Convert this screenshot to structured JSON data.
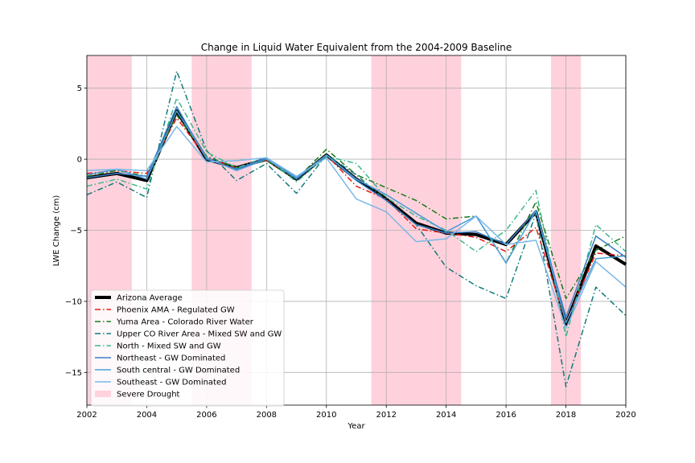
{
  "chart_data": {
    "type": "line",
    "title": "Change in Liquid Water Equivalent from the 2004-2009 Baseline",
    "xlabel": "Year",
    "ylabel": "LWE Change (cm)",
    "xlim": [
      2002,
      2020
    ],
    "ylim": [
      -17.3,
      7.3
    ],
    "xticks": [
      2002,
      2004,
      2006,
      2008,
      2010,
      2012,
      2014,
      2016,
      2018,
      2020
    ],
    "yticks": [
      5,
      0,
      -5,
      -10,
      -15
    ],
    "yticklabels": [
      "5",
      "0",
      "−5",
      "−10",
      "−15"
    ],
    "grid": true,
    "legend_position": "lower-left",
    "x": [
      2002,
      2003,
      2004,
      2005,
      2006,
      2007,
      2008,
      2009,
      2010,
      2011,
      2012,
      2013,
      2014,
      2015,
      2016,
      2017,
      2018,
      2019,
      2020
    ],
    "drought_periods": [
      [
        2002,
        2003.5
      ],
      [
        2005.5,
        2007.5
      ],
      [
        2011.5,
        2014.5
      ],
      [
        2017.5,
        2018.5
      ]
    ],
    "drought": {
      "name": "Severe Drought",
      "color": "#ffd1dc"
    },
    "series": [
      {
        "name": "Arizona Average",
        "color": "#000000",
        "style": "solid",
        "width": 4,
        "values": [
          -1.3,
          -1.0,
          -1.5,
          3.4,
          0.0,
          -0.6,
          0.0,
          -1.4,
          0.3,
          -1.4,
          -2.8,
          -4.5,
          -5.2,
          -5.3,
          -6.0,
          -3.7,
          -11.6,
          -6.1,
          -7.4
        ]
      },
      {
        "name": "Phoenix AMA - Regulated GW",
        "color": "#e8190f",
        "style": "dashdot",
        "width": 1.5,
        "values": [
          -1.0,
          -0.8,
          -1.0,
          2.9,
          0.1,
          -0.6,
          -0.1,
          -1.3,
          0.3,
          -1.9,
          -2.8,
          -4.9,
          -5.2,
          -5.5,
          -6.5,
          -4.8,
          -11.5,
          -6.6,
          -6.8
        ]
      },
      {
        "name": "Yuma Area - Colorado River Water",
        "color": "#1a7a1a",
        "style": "dashdot",
        "width": 1.5,
        "values": [
          -1.2,
          -0.8,
          -1.2,
          3.1,
          0.2,
          -0.6,
          -0.1,
          -1.4,
          0.7,
          -1.1,
          -2.0,
          -2.9,
          -4.2,
          -4.0,
          -7.3,
          -3.0,
          -9.8,
          -6.4,
          -5.4
        ]
      },
      {
        "name": "Upper CO River Area - Mixed SW and GW",
        "color": "#117a7a",
        "style": "dashdot",
        "width": 1.5,
        "values": [
          -2.5,
          -1.6,
          -2.7,
          6.2,
          0.6,
          -1.5,
          -0.3,
          -2.4,
          0.3,
          -1.1,
          -2.9,
          -4.6,
          -7.6,
          -8.9,
          -9.8,
          -3.8,
          -16.0,
          -9.0,
          -11.0
        ]
      },
      {
        "name": "North - Mixed SW and GW",
        "color": "#3cb88c",
        "style": "dashdot",
        "width": 1.5,
        "values": [
          -1.9,
          -1.4,
          -2.1,
          4.3,
          0.5,
          -0.6,
          0.1,
          -1.6,
          0.2,
          -0.3,
          -2.7,
          -4.0,
          -5.0,
          -6.5,
          -5.0,
          -2.2,
          -12.5,
          -4.6,
          -6.5
        ]
      },
      {
        "name": "Northeast - GW Dominated",
        "color": "#3a7ec6",
        "style": "solid",
        "width": 1.5,
        "values": [
          -1.3,
          -1.0,
          -1.2,
          3.7,
          0.0,
          -0.7,
          0.1,
          -1.4,
          0.3,
          -1.5,
          -2.9,
          -4.6,
          -5.2,
          -5.1,
          -6.0,
          -3.6,
          -11.1,
          -5.4,
          -6.9
        ]
      },
      {
        "name": "South central - GW Dominated",
        "color": "#4a9ed8",
        "style": "solid",
        "width": 1.5,
        "values": [
          -1.1,
          -0.7,
          -1.4,
          3.4,
          0.1,
          -0.8,
          0.0,
          -1.3,
          0.3,
          -1.4,
          -2.5,
          -3.8,
          -5.1,
          -4.0,
          -7.3,
          -3.6,
          -11.5,
          -7.0,
          -6.8
        ]
      },
      {
        "name": "Southeast - GW Dominated",
        "color": "#7ab8e8",
        "style": "solid",
        "width": 1.5,
        "values": [
          -0.8,
          -0.7,
          -0.8,
          2.3,
          -0.2,
          -0.1,
          0.1,
          -1.2,
          0.1,
          -2.8,
          -3.7,
          -5.8,
          -5.6,
          -4.0,
          -6.0,
          -5.7,
          -11.9,
          -7.2,
          -9.0
        ]
      }
    ]
  }
}
